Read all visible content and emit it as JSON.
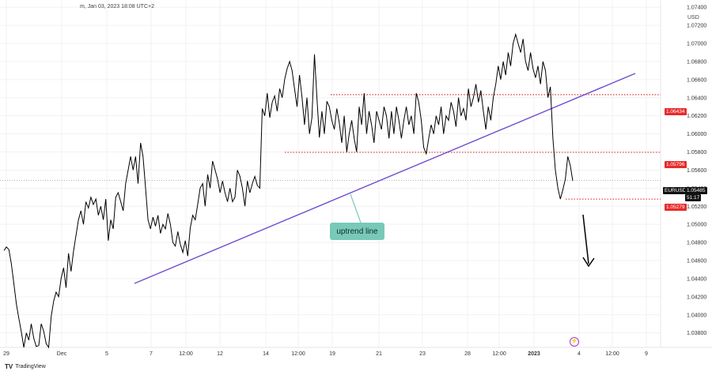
{
  "header": {
    "info": "m, Jan 03, 2023 18:08 UTC+2",
    "currency": "USD"
  },
  "branding": {
    "logo_glyph": "TV",
    "name": "TradingView"
  },
  "chart_data": {
    "type": "line",
    "symbol": "EURUSD",
    "y_ticks": [
      "1.07400",
      "1.07200",
      "1.07000",
      "1.06800",
      "1.06600",
      "1.06400",
      "1.06200",
      "1.06000",
      "1.05800",
      "1.05600",
      "1.05400",
      "1.05200",
      "1.05000",
      "1.04800",
      "1.04600",
      "1.04400",
      "1.04200",
      "1.04000",
      "1.03800"
    ],
    "ylim": [
      1.0364,
      1.0748
    ],
    "x_ticks": [
      "29",
      "Dec",
      "5",
      "7",
      "12:00",
      "12",
      "14",
      "12:00",
      "19",
      "21",
      "23",
      "28",
      "12:00",
      "2023",
      "4",
      "12:00",
      "9"
    ],
    "price_labels": {
      "current": "1.05485",
      "countdown": "51:17",
      "levels": [
        "1.06434",
        "1.05796",
        "1.05279"
      ]
    },
    "levels": [
      {
        "value": 1.06434,
        "color": "#e53935",
        "style": "dotted"
      },
      {
        "value": 1.05796,
        "color": "#e53935",
        "style": "dotted"
      },
      {
        "value": 1.05279,
        "color": "#e53935",
        "style": "dotted"
      }
    ],
    "current_price": 1.05485,
    "trendline": {
      "color": "#6f4bd1",
      "label": "uptrend line"
    },
    "annotation_arrow": "down",
    "series": [
      {
        "color": "#000000",
        "values": [
          1.0471,
          1.0475,
          1.0472,
          1.0456,
          1.0434,
          1.0412,
          1.0396,
          1.0381,
          1.0364,
          1.038,
          1.0372,
          1.039,
          1.0374,
          1.0365,
          1.0366,
          1.039,
          1.0382,
          1.0368,
          1.0364,
          1.0398,
          1.0415,
          1.0425,
          1.042,
          1.044,
          1.0452,
          1.043,
          1.0468,
          1.0448,
          1.047,
          1.0488,
          1.0505,
          1.0515,
          1.05,
          1.0525,
          1.0518,
          1.053,
          1.0522,
          1.0528,
          1.051,
          1.052,
          1.0505,
          1.0528,
          1.0482,
          1.0505,
          1.0495,
          1.053,
          1.0535,
          1.0525,
          1.0515,
          1.0545,
          1.056,
          1.0575,
          1.056,
          1.0575,
          1.0545,
          1.059,
          1.0575,
          1.054,
          1.0505,
          1.0495,
          1.0508,
          1.0498,
          1.051,
          1.049,
          1.05,
          1.0495,
          1.0512,
          1.05,
          1.048,
          1.0476,
          1.0492,
          1.0478,
          1.0469,
          1.0482,
          1.0465,
          1.0496,
          1.051,
          1.0505,
          1.0522,
          1.054,
          1.0545,
          1.052,
          1.0555,
          1.054,
          1.057,
          1.056,
          1.055,
          1.0535,
          1.0548,
          1.0535,
          1.0525,
          1.054,
          1.0525,
          1.053,
          1.056,
          1.0553,
          1.054,
          1.052,
          1.0548,
          1.0535,
          1.0545,
          1.0553,
          1.0543,
          1.054,
          1.0628,
          1.062,
          1.0645,
          1.0618,
          1.0635,
          1.0642,
          1.0625,
          1.065,
          1.064,
          1.066,
          1.0672,
          1.068,
          1.067,
          1.065,
          1.063,
          1.0665,
          1.064,
          1.061,
          1.064,
          1.06,
          1.0618,
          1.0688,
          1.064,
          1.0596,
          1.0625,
          1.06,
          1.0636,
          1.063,
          1.0615,
          1.0605,
          1.0628,
          1.0612,
          1.059,
          1.062,
          1.058,
          1.06,
          1.0615,
          1.0595,
          1.058,
          1.063,
          1.061,
          1.0645,
          1.06,
          1.0625,
          1.061,
          1.059,
          1.0625,
          1.0615,
          1.0605,
          1.063,
          1.062,
          1.0595,
          1.0625,
          1.06,
          1.063,
          1.0615,
          1.0595,
          1.0615,
          1.063,
          1.061,
          1.062,
          1.06,
          1.0645,
          1.0635,
          1.0615,
          1.0585,
          1.0578,
          1.0595,
          1.061,
          1.06,
          1.062,
          1.061,
          1.063,
          1.06,
          1.062,
          1.0615,
          1.0635,
          1.0625,
          1.0608,
          1.064,
          1.062,
          1.0628,
          1.0615,
          1.065,
          1.063,
          1.064,
          1.0655,
          1.0635,
          1.0648,
          1.0625,
          1.0605,
          1.063,
          1.0615,
          1.064,
          1.0655,
          1.0675,
          1.066,
          1.068,
          1.0665,
          1.069,
          1.0675,
          1.07,
          1.071,
          1.07,
          1.069,
          1.0705,
          1.068,
          1.067,
          1.069,
          1.0672,
          1.0662,
          1.0675,
          1.0655,
          1.068,
          1.067,
          1.064,
          1.0652,
          1.0595,
          1.056,
          1.054,
          1.0528,
          1.0538,
          1.055,
          1.0575,
          1.0565,
          1.0548
        ]
      }
    ]
  }
}
